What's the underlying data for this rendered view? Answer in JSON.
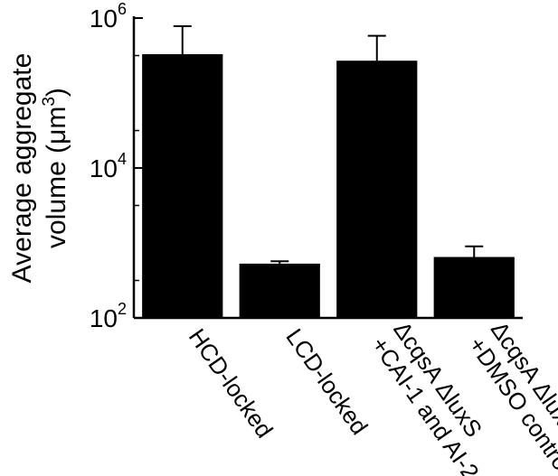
{
  "chart_data": {
    "type": "bar",
    "title": "",
    "xlabel": "",
    "ylabel_lines": [
      "Average aggregate",
      "volume (μm",
      "3",
      ")"
    ],
    "yscale": "log",
    "ylim": [
      100,
      1000000
    ],
    "yticks": [
      {
        "value": 100,
        "base": "10",
        "exp": "2"
      },
      {
        "value": 10000,
        "base": "10",
        "exp": "4"
      },
      {
        "value": 1000000,
        "base": "10",
        "exp": "6"
      }
    ],
    "categories": [
      {
        "lines": [
          "HCD-locked"
        ]
      },
      {
        "lines": [
          "LCD-locked"
        ]
      },
      {
        "lines": [
          "ΔcqsA ΔluxS",
          "+CAI-1 and AI-2"
        ]
      },
      {
        "lines": [
          "ΔcqsA ΔluxS",
          "+DMSO control"
        ]
      }
    ],
    "values": [
      330000,
      530,
      270000,
      650
    ],
    "error_upper": [
      780000,
      570,
      580000,
      900
    ],
    "colors": {
      "bar": "#000000",
      "axis": "#000000"
    }
  }
}
